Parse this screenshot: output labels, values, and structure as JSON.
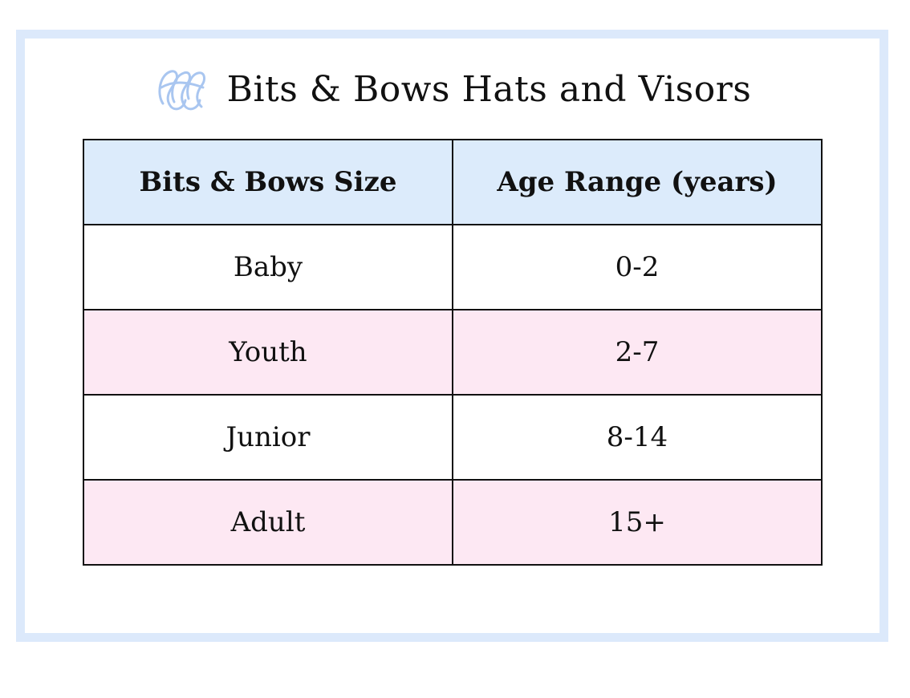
{
  "header": {
    "title": "Bits & Bows Hats and Visors",
    "logo_icon": "monogram-logo-icon",
    "logo_color": "#a9c6f0"
  },
  "table": {
    "columns": [
      "Bits & Bows Size",
      "Age Range (years)"
    ],
    "rows": [
      {
        "size": "Baby",
        "age": "0-2"
      },
      {
        "size": "Youth",
        "age": "2-7"
      },
      {
        "size": "Junior",
        "age": "8-14"
      },
      {
        "size": "Adult",
        "age": "15+"
      }
    ]
  },
  "colors": {
    "frame_border": "#dce9fb",
    "header_row": "#dcebfb",
    "alt_row": "#fde8f3",
    "grid_line": "#111111"
  }
}
